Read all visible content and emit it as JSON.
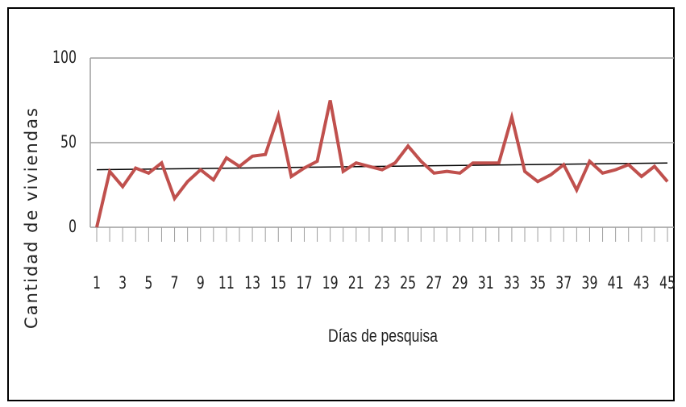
{
  "chart_data": {
    "type": "line",
    "x_label": "Días de pesquisa",
    "y_label": "Cantidad de viviendas",
    "x": [
      1,
      2,
      3,
      4,
      5,
      6,
      7,
      8,
      9,
      10,
      11,
      12,
      13,
      14,
      15,
      16,
      17,
      18,
      19,
      20,
      21,
      22,
      23,
      24,
      25,
      26,
      27,
      28,
      29,
      30,
      31,
      32,
      33,
      34,
      35,
      36,
      37,
      38,
      39,
      40,
      41,
      42,
      43,
      44,
      45
    ],
    "series": [
      {
        "color": "#c0504d",
        "values": [
          0,
          33,
          24,
          35,
          32,
          38,
          17,
          27,
          34,
          28,
          41,
          36,
          42,
          43,
          66,
          30,
          35,
          39,
          75,
          33,
          38,
          36,
          34,
          38,
          48,
          39,
          32,
          33,
          32,
          38,
          38,
          38,
          65,
          33,
          27,
          31,
          37,
          22,
          39,
          32,
          34,
          37,
          30,
          36,
          27
        ]
      }
    ],
    "trend": {
      "color": "#000000",
      "x": [
        1,
        45
      ],
      "values": [
        34,
        38
      ]
    },
    "xlim": [
      1,
      45
    ],
    "xticks": [
      1,
      3,
      5,
      7,
      9,
      11,
      13,
      15,
      17,
      19,
      21,
      23,
      25,
      27,
      29,
      31,
      33,
      35,
      37,
      39,
      41,
      43,
      45
    ],
    "ylim": [
      0,
      100
    ],
    "yticks": [
      0,
      50,
      100
    ],
    "grid": true
  }
}
